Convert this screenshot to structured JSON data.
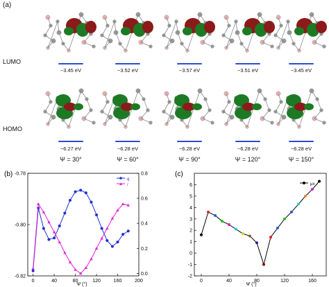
{
  "panel_a": {
    "label": "(a)",
    "lumo_label": "LUMO",
    "homo_label": "HOMO",
    "lumo_energies": [
      "−3.45 eV",
      "−3.52 eV",
      "−3.57 eV",
      "−3.51 eV",
      "−3.45 eV"
    ],
    "homo_energies": [
      "−6.27 eV",
      "−6.28 eV",
      "−6.28 eV",
      "−6.28 eV",
      "−6.28 eV"
    ],
    "angles": [
      "Ψ = 30°",
      "Ψ = 60°",
      "Ψ = 90°",
      "Ψ = 120°",
      "Ψ = 150°"
    ],
    "colors": {
      "lobe_positive": "#8b1a1a",
      "lobe_negative": "#1d7a24",
      "level_line": "#2a4bd0"
    }
  },
  "chart_data": [
    {
      "type": "line",
      "panel_label": "(b)",
      "xlabel": "Ψ (°)",
      "xlim": [
        -10,
        200
      ],
      "xticks": [
        "0",
        "40",
        "80",
        "120",
        "160",
        "200"
      ],
      "ylim_left": [
        -0.82,
        -0.78
      ],
      "yticks_left": [
        "-0.82",
        "-0.80",
        "-0.78"
      ],
      "ylim_right": [
        -0.02,
        0.8
      ],
      "yticks_right": [
        "0.0",
        "0.2",
        "0.4",
        "0.6",
        "0.8"
      ],
      "series": [
        {
          "name": "q",
          "axis": "left",
          "color": "#1f2fd0",
          "marker": "circle",
          "x": [
            0,
            10,
            20,
            30,
            40,
            50,
            60,
            70,
            80,
            90,
            100,
            110,
            120,
            130,
            140,
            150,
            160,
            170,
            180
          ],
          "values": [
            -0.818,
            -0.7935,
            -0.8015,
            -0.8058,
            -0.8052,
            -0.8005,
            -0.7955,
            -0.7905,
            -0.7872,
            -0.7866,
            -0.7876,
            -0.7912,
            -0.7962,
            -0.8015,
            -0.8062,
            -0.8085,
            -0.8068,
            -0.8038,
            -0.8025
          ]
        },
        {
          "name": "r",
          "axis": "right",
          "color": "#e020d8",
          "marker": "triangle",
          "x": [
            0,
            10,
            20,
            30,
            40,
            50,
            60,
            70,
            80,
            90,
            100,
            110,
            120,
            130,
            140,
            150,
            160,
            170,
            180
          ],
          "values": [
            0.04,
            0.555,
            0.49,
            0.41,
            0.33,
            0.25,
            0.165,
            0.09,
            0.03,
            0.0,
            0.045,
            0.115,
            0.2,
            0.28,
            0.36,
            0.44,
            0.505,
            0.555,
            0.545
          ]
        }
      ]
    },
    {
      "type": "line",
      "panel_label": "(c)",
      "xlabel": "Ψ (°)",
      "xlim": [
        -10,
        180
      ],
      "xticks": [
        "0",
        "40",
        "80",
        "120",
        "160"
      ],
      "ylim": [
        -2,
        7
      ],
      "yticks": [
        "-2",
        "-1",
        "0",
        "1",
        "2",
        "3",
        "4",
        "5",
        "6"
      ],
      "series": [
        {
          "name": "μx",
          "color": "#000000",
          "x": [
            0,
            10,
            20,
            30,
            40,
            50,
            60,
            70,
            80,
            90,
            100,
            110,
            120,
            130,
            140,
            150,
            160,
            170
          ],
          "values": [
            1.6,
            3.6,
            3.3,
            2.8,
            2.5,
            2.1,
            1.7,
            1.5,
            0.9,
            -1.0,
            1.4,
            2.2,
            3.0,
            3.6,
            4.3,
            5.0,
            5.6,
            6.3
          ],
          "point_colors": [
            "#000000",
            "#e02020",
            "#2060e0",
            "#20c020",
            "#d020d0",
            "#20d0d0",
            "#d0d020",
            "#806020",
            "#2020a0",
            "#800000",
            "#e02020",
            "#2060e0",
            "#20c020",
            "#2060e0",
            "#20d0d0",
            "#ff8020",
            "#d020d0",
            "#000000"
          ]
        }
      ]
    }
  ]
}
